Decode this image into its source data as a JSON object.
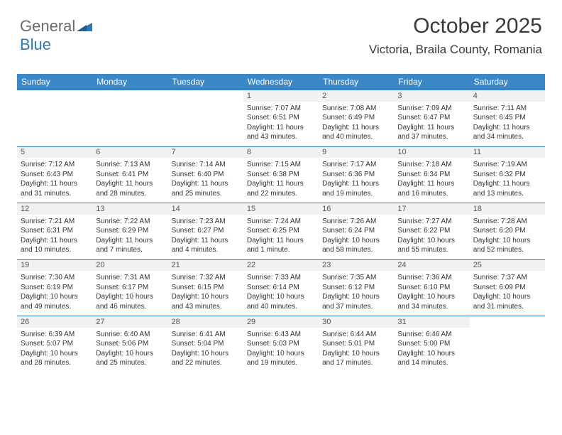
{
  "brand": {
    "part1": "General",
    "part2": "Blue"
  },
  "title": "October 2025",
  "location": "Victoria, Braila County, Romania",
  "style": {
    "header_bg": "#3b87c8",
    "header_text": "#ffffff",
    "daynum_bg": "#f1f1f1",
    "rule_color": "#2f78b7",
    "body_text": "#333333",
    "title_color": "#3a3a3a",
    "logo_gray": "#6a6a6a",
    "logo_blue": "#2f78b7",
    "page_bg": "#ffffff",
    "font": "Arial",
    "header_fontsize": 12,
    "cell_fontsize": 10,
    "title_fontsize": 30,
    "location_fontsize": 17
  },
  "weekdays": [
    "Sunday",
    "Monday",
    "Tuesday",
    "Wednesday",
    "Thursday",
    "Friday",
    "Saturday"
  ],
  "weeks": [
    {
      "nums": [
        "",
        "",
        "",
        "1",
        "2",
        "3",
        "4"
      ],
      "cells": [
        null,
        null,
        null,
        {
          "sr": "Sunrise: 7:07 AM",
          "ss": "Sunset: 6:51 PM",
          "d1": "Daylight: 11 hours",
          "d2": "and 43 minutes."
        },
        {
          "sr": "Sunrise: 7:08 AM",
          "ss": "Sunset: 6:49 PM",
          "d1": "Daylight: 11 hours",
          "d2": "and 40 minutes."
        },
        {
          "sr": "Sunrise: 7:09 AM",
          "ss": "Sunset: 6:47 PM",
          "d1": "Daylight: 11 hours",
          "d2": "and 37 minutes."
        },
        {
          "sr": "Sunrise: 7:11 AM",
          "ss": "Sunset: 6:45 PM",
          "d1": "Daylight: 11 hours",
          "d2": "and 34 minutes."
        }
      ]
    },
    {
      "nums": [
        "5",
        "6",
        "7",
        "8",
        "9",
        "10",
        "11"
      ],
      "cells": [
        {
          "sr": "Sunrise: 7:12 AM",
          "ss": "Sunset: 6:43 PM",
          "d1": "Daylight: 11 hours",
          "d2": "and 31 minutes."
        },
        {
          "sr": "Sunrise: 7:13 AM",
          "ss": "Sunset: 6:41 PM",
          "d1": "Daylight: 11 hours",
          "d2": "and 28 minutes."
        },
        {
          "sr": "Sunrise: 7:14 AM",
          "ss": "Sunset: 6:40 PM",
          "d1": "Daylight: 11 hours",
          "d2": "and 25 minutes."
        },
        {
          "sr": "Sunrise: 7:15 AM",
          "ss": "Sunset: 6:38 PM",
          "d1": "Daylight: 11 hours",
          "d2": "and 22 minutes."
        },
        {
          "sr": "Sunrise: 7:17 AM",
          "ss": "Sunset: 6:36 PM",
          "d1": "Daylight: 11 hours",
          "d2": "and 19 minutes."
        },
        {
          "sr": "Sunrise: 7:18 AM",
          "ss": "Sunset: 6:34 PM",
          "d1": "Daylight: 11 hours",
          "d2": "and 16 minutes."
        },
        {
          "sr": "Sunrise: 7:19 AM",
          "ss": "Sunset: 6:32 PM",
          "d1": "Daylight: 11 hours",
          "d2": "and 13 minutes."
        }
      ]
    },
    {
      "nums": [
        "12",
        "13",
        "14",
        "15",
        "16",
        "17",
        "18"
      ],
      "cells": [
        {
          "sr": "Sunrise: 7:21 AM",
          "ss": "Sunset: 6:31 PM",
          "d1": "Daylight: 11 hours",
          "d2": "and 10 minutes."
        },
        {
          "sr": "Sunrise: 7:22 AM",
          "ss": "Sunset: 6:29 PM",
          "d1": "Daylight: 11 hours",
          "d2": "and 7 minutes."
        },
        {
          "sr": "Sunrise: 7:23 AM",
          "ss": "Sunset: 6:27 PM",
          "d1": "Daylight: 11 hours",
          "d2": "and 4 minutes."
        },
        {
          "sr": "Sunrise: 7:24 AM",
          "ss": "Sunset: 6:25 PM",
          "d1": "Daylight: 11 hours",
          "d2": "and 1 minute."
        },
        {
          "sr": "Sunrise: 7:26 AM",
          "ss": "Sunset: 6:24 PM",
          "d1": "Daylight: 10 hours",
          "d2": "and 58 minutes."
        },
        {
          "sr": "Sunrise: 7:27 AM",
          "ss": "Sunset: 6:22 PM",
          "d1": "Daylight: 10 hours",
          "d2": "and 55 minutes."
        },
        {
          "sr": "Sunrise: 7:28 AM",
          "ss": "Sunset: 6:20 PM",
          "d1": "Daylight: 10 hours",
          "d2": "and 52 minutes."
        }
      ]
    },
    {
      "nums": [
        "19",
        "20",
        "21",
        "22",
        "23",
        "24",
        "25"
      ],
      "cells": [
        {
          "sr": "Sunrise: 7:30 AM",
          "ss": "Sunset: 6:19 PM",
          "d1": "Daylight: 10 hours",
          "d2": "and 49 minutes."
        },
        {
          "sr": "Sunrise: 7:31 AM",
          "ss": "Sunset: 6:17 PM",
          "d1": "Daylight: 10 hours",
          "d2": "and 46 minutes."
        },
        {
          "sr": "Sunrise: 7:32 AM",
          "ss": "Sunset: 6:15 PM",
          "d1": "Daylight: 10 hours",
          "d2": "and 43 minutes."
        },
        {
          "sr": "Sunrise: 7:33 AM",
          "ss": "Sunset: 6:14 PM",
          "d1": "Daylight: 10 hours",
          "d2": "and 40 minutes."
        },
        {
          "sr": "Sunrise: 7:35 AM",
          "ss": "Sunset: 6:12 PM",
          "d1": "Daylight: 10 hours",
          "d2": "and 37 minutes."
        },
        {
          "sr": "Sunrise: 7:36 AM",
          "ss": "Sunset: 6:10 PM",
          "d1": "Daylight: 10 hours",
          "d2": "and 34 minutes."
        },
        {
          "sr": "Sunrise: 7:37 AM",
          "ss": "Sunset: 6:09 PM",
          "d1": "Daylight: 10 hours",
          "d2": "and 31 minutes."
        }
      ]
    },
    {
      "nums": [
        "26",
        "27",
        "28",
        "29",
        "30",
        "31",
        ""
      ],
      "cells": [
        {
          "sr": "Sunrise: 6:39 AM",
          "ss": "Sunset: 5:07 PM",
          "d1": "Daylight: 10 hours",
          "d2": "and 28 minutes."
        },
        {
          "sr": "Sunrise: 6:40 AM",
          "ss": "Sunset: 5:06 PM",
          "d1": "Daylight: 10 hours",
          "d2": "and 25 minutes."
        },
        {
          "sr": "Sunrise: 6:41 AM",
          "ss": "Sunset: 5:04 PM",
          "d1": "Daylight: 10 hours",
          "d2": "and 22 minutes."
        },
        {
          "sr": "Sunrise: 6:43 AM",
          "ss": "Sunset: 5:03 PM",
          "d1": "Daylight: 10 hours",
          "d2": "and 19 minutes."
        },
        {
          "sr": "Sunrise: 6:44 AM",
          "ss": "Sunset: 5:01 PM",
          "d1": "Daylight: 10 hours",
          "d2": "and 17 minutes."
        },
        {
          "sr": "Sunrise: 6:46 AM",
          "ss": "Sunset: 5:00 PM",
          "d1": "Daylight: 10 hours",
          "d2": "and 14 minutes."
        },
        null
      ]
    }
  ]
}
